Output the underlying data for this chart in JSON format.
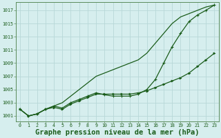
{
  "background_color": "#d6eeee",
  "grid_color": "#b8d8d8",
  "line_color": "#1a5c1a",
  "marker_color": "#1a5c1a",
  "xlabel": "Graphe pression niveau de la mer (hPa)",
  "xlabel_fontsize": 7.5,
  "ylabel_ticks": [
    1001,
    1003,
    1005,
    1007,
    1009,
    1011,
    1013,
    1015,
    1017
  ],
  "xlim": [
    -0.5,
    23.5
  ],
  "ylim": [
    1000.2,
    1018.2
  ],
  "xticks": [
    0,
    1,
    2,
    3,
    4,
    5,
    6,
    7,
    8,
    9,
    10,
    11,
    12,
    13,
    14,
    15,
    16,
    17,
    18,
    19,
    20,
    21,
    22,
    23
  ],
  "series": {
    "line_straight": [
      1002.0,
      1001.0,
      1001.3,
      1002.0,
      1002.5,
      1003.0,
      1004.0,
      1005.0,
      1006.0,
      1007.0,
      1007.5,
      1008.0,
      1008.5,
      1009.0,
      1009.5,
      1010.5,
      1012.0,
      1013.5,
      1015.0,
      1016.0,
      1016.5,
      1017.0,
      1017.5,
      1017.8
    ],
    "line_mid": [
      1002.0,
      1001.0,
      1001.3,
      1002.0,
      1002.5,
      1002.2,
      1003.0,
      1003.5,
      1004.0,
      1004.5,
      1004.2,
      1004.0,
      1004.0,
      1004.0,
      1004.3,
      1005.0,
      1006.5,
      1009.0,
      1011.5,
      1013.5,
      1015.3,
      1016.3,
      1017.0,
      1017.8
    ],
    "line_bottom": [
      1002.0,
      1001.0,
      1001.3,
      1002.0,
      1002.3,
      1002.0,
      1002.8,
      1003.3,
      1003.8,
      1004.3,
      1004.3,
      1004.3,
      1004.3,
      1004.3,
      1004.5,
      1004.8,
      1005.3,
      1005.8,
      1006.3,
      1006.8,
      1007.5,
      1008.5,
      1009.5,
      1010.5
    ]
  },
  "marker_series": [
    0,
    1,
    2,
    3,
    4,
    5,
    6,
    7,
    8,
    9,
    10,
    11,
    12,
    13,
    14,
    15,
    16,
    17,
    18,
    19,
    20,
    21,
    22,
    23
  ]
}
